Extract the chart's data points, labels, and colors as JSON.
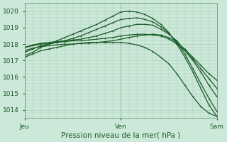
{
  "background_color": "#cce8d8",
  "plot_bg_color": "#cce8d8",
  "grid_color": "#aaccbb",
  "line_color": "#1a5c28",
  "title": "Pression niveau de la mer( hPa )",
  "ylim": [
    1013.5,
    1020.5
  ],
  "yticks": [
    1014,
    1015,
    1016,
    1017,
    1018,
    1019,
    1020
  ],
  "xlim": [
    0,
    48
  ],
  "xtick_positions": [
    0,
    24,
    48
  ],
  "xtick_labels": [
    "Jeu",
    "Ven",
    "Sam"
  ],
  "series": [
    {
      "points": [
        [
          0,
          1017.2
        ],
        [
          2,
          1017.4
        ],
        [
          4,
          1017.6
        ],
        [
          6,
          1017.7
        ],
        [
          8,
          1017.8
        ],
        [
          10,
          1017.9
        ],
        [
          12,
          1018.0
        ],
        [
          14,
          1018.05
        ],
        [
          16,
          1018.1
        ],
        [
          18,
          1018.1
        ],
        [
          20,
          1018.15
        ],
        [
          22,
          1018.2
        ],
        [
          24,
          1018.3
        ],
        [
          26,
          1018.4
        ],
        [
          28,
          1018.5
        ],
        [
          30,
          1018.55
        ],
        [
          32,
          1018.6
        ],
        [
          34,
          1018.55
        ],
        [
          36,
          1018.4
        ],
        [
          38,
          1018.1
        ],
        [
          40,
          1017.7
        ],
        [
          42,
          1017.2
        ],
        [
          44,
          1016.7
        ],
        [
          46,
          1016.2
        ],
        [
          48,
          1015.8
        ]
      ]
    },
    {
      "points": [
        [
          0,
          1017.8
        ],
        [
          2,
          1017.9
        ],
        [
          4,
          1018.0
        ],
        [
          6,
          1018.05
        ],
        [
          8,
          1018.1
        ],
        [
          10,
          1018.15
        ],
        [
          12,
          1018.2
        ],
        [
          14,
          1018.2
        ],
        [
          16,
          1018.25
        ],
        [
          18,
          1018.3
        ],
        [
          20,
          1018.35
        ],
        [
          22,
          1018.4
        ],
        [
          24,
          1018.5
        ],
        [
          26,
          1018.55
        ],
        [
          28,
          1018.6
        ],
        [
          30,
          1018.6
        ],
        [
          32,
          1018.55
        ],
        [
          34,
          1018.5
        ],
        [
          36,
          1018.3
        ],
        [
          38,
          1018.0
        ],
        [
          40,
          1017.6
        ],
        [
          42,
          1017.1
        ],
        [
          44,
          1016.5
        ],
        [
          46,
          1015.9
        ],
        [
          48,
          1015.3
        ]
      ]
    },
    {
      "points": [
        [
          0,
          1017.8
        ],
        [
          2,
          1017.95
        ],
        [
          4,
          1018.05
        ],
        [
          6,
          1018.1
        ],
        [
          8,
          1018.15
        ],
        [
          10,
          1018.2
        ],
        [
          12,
          1018.25
        ],
        [
          14,
          1018.3
        ],
        [
          16,
          1018.4
        ],
        [
          18,
          1018.5
        ],
        [
          20,
          1018.65
        ],
        [
          22,
          1018.8
        ],
        [
          24,
          1019.0
        ],
        [
          26,
          1019.1
        ],
        [
          28,
          1019.2
        ],
        [
          30,
          1019.2
        ],
        [
          32,
          1019.15
        ],
        [
          34,
          1018.9
        ],
        [
          36,
          1018.6
        ],
        [
          38,
          1018.2
        ],
        [
          40,
          1017.6
        ],
        [
          42,
          1017.0
        ],
        [
          44,
          1016.3
        ],
        [
          46,
          1015.5
        ],
        [
          48,
          1014.8
        ]
      ]
    },
    {
      "points": [
        [
          0,
          1017.5
        ],
        [
          2,
          1017.7
        ],
        [
          4,
          1017.9
        ],
        [
          6,
          1018.0
        ],
        [
          8,
          1018.1
        ],
        [
          10,
          1018.2
        ],
        [
          12,
          1018.35
        ],
        [
          14,
          1018.5
        ],
        [
          16,
          1018.7
        ],
        [
          18,
          1018.9
        ],
        [
          20,
          1019.1
        ],
        [
          22,
          1019.3
        ],
        [
          24,
          1019.5
        ],
        [
          26,
          1019.55
        ],
        [
          28,
          1019.6
        ],
        [
          30,
          1019.5
        ],
        [
          32,
          1019.35
        ],
        [
          34,
          1019.05
        ],
        [
          36,
          1018.65
        ],
        [
          38,
          1018.1
        ],
        [
          40,
          1017.4
        ],
        [
          42,
          1016.5
        ],
        [
          44,
          1015.6
        ],
        [
          46,
          1014.7
        ],
        [
          48,
          1013.9
        ]
      ]
    },
    {
      "points": [
        [
          0,
          1017.3
        ],
        [
          2,
          1017.5
        ],
        [
          4,
          1017.8
        ],
        [
          6,
          1018.0
        ],
        [
          8,
          1018.2
        ],
        [
          10,
          1018.4
        ],
        [
          12,
          1018.6
        ],
        [
          14,
          1018.8
        ],
        [
          16,
          1019.0
        ],
        [
          18,
          1019.2
        ],
        [
          20,
          1019.45
        ],
        [
          22,
          1019.7
        ],
        [
          24,
          1019.95
        ],
        [
          26,
          1020.0
        ],
        [
          28,
          1019.95
        ],
        [
          30,
          1019.8
        ],
        [
          32,
          1019.55
        ],
        [
          34,
          1019.2
        ],
        [
          36,
          1018.7
        ],
        [
          38,
          1018.0
        ],
        [
          40,
          1017.2
        ],
        [
          42,
          1016.3
        ],
        [
          44,
          1015.3
        ],
        [
          46,
          1014.3
        ],
        [
          48,
          1013.6
        ]
      ]
    },
    {
      "points": [
        [
          0,
          1017.6
        ],
        [
          2,
          1017.75
        ],
        [
          4,
          1017.85
        ],
        [
          6,
          1017.9
        ],
        [
          8,
          1017.95
        ],
        [
          10,
          1018.0
        ],
        [
          12,
          1018.0
        ],
        [
          14,
          1018.05
        ],
        [
          16,
          1018.05
        ],
        [
          18,
          1018.1
        ],
        [
          20,
          1018.1
        ],
        [
          22,
          1018.1
        ],
        [
          24,
          1018.1
        ],
        [
          26,
          1018.05
        ],
        [
          28,
          1017.95
        ],
        [
          30,
          1017.8
        ],
        [
          32,
          1017.55
        ],
        [
          34,
          1017.2
        ],
        [
          36,
          1016.8
        ],
        [
          38,
          1016.2
        ],
        [
          40,
          1015.5
        ],
        [
          42,
          1014.8
        ],
        [
          44,
          1014.2
        ],
        [
          46,
          1013.8
        ],
        [
          48,
          1013.6
        ]
      ]
    }
  ],
  "linewidth": 0.9,
  "markersize": 2.0,
  "title_fontsize": 7.5,
  "tick_fontsize": 6.5
}
